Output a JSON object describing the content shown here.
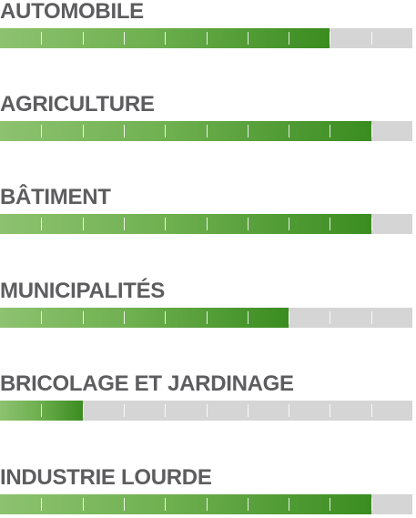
{
  "gauges": [
    {
      "label": "AUTOMOBILE",
      "level": 0.8
    },
    {
      "label": "AGRICULTURE",
      "level": 0.9
    },
    {
      "label": "BÂTIMENT",
      "level": 0.9
    },
    {
      "label": "MUNICIPALITÉS",
      "level": 0.7
    },
    {
      "label": "BRICOLAGE ET JARDINAGE",
      "level": 0.2
    },
    {
      "label": "INDUSTRIE LOURDE",
      "level": 0.9
    }
  ],
  "colors": {
    "label": "#5d5d5f",
    "track": "#d5d5d5",
    "fill_start": "#8dc270",
    "fill_end": "#3a8c20"
  }
}
